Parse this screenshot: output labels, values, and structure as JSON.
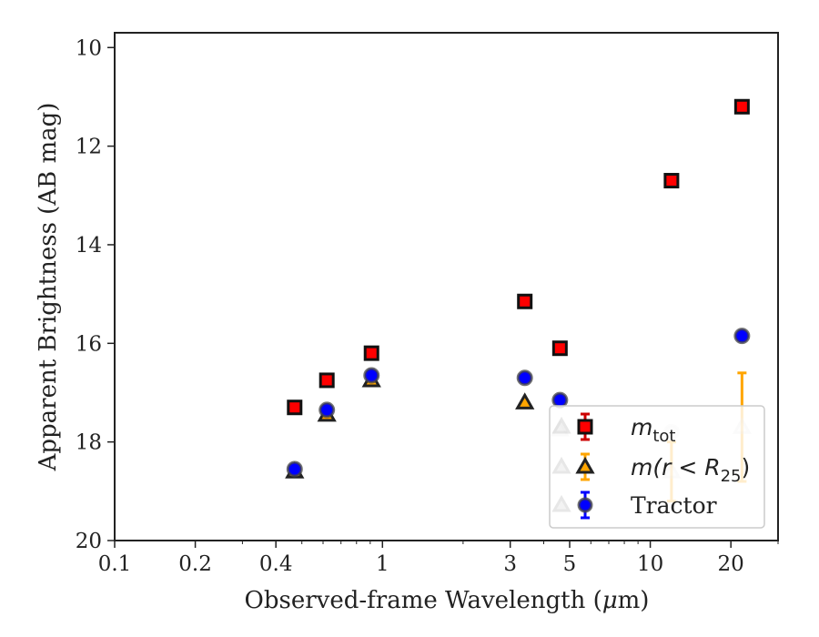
{
  "chart_data": {
    "type": "scatter",
    "xlabel_main": "Observed-frame Wavelength (",
    "xlabel_mu": "μ",
    "xlabel_tail": "m)",
    "ylabel": "Apparent Brightness (AB mag)",
    "x_scale": "log",
    "y_inverted": true,
    "xlim": [
      0.1,
      30
    ],
    "ylim": [
      9.7,
      20
    ],
    "x_ticks": [
      {
        "value": 0.1,
        "label": "0.1"
      },
      {
        "value": 0.2,
        "label": "0.2"
      },
      {
        "value": 0.4,
        "label": "0.4"
      },
      {
        "value": 1,
        "label": "1"
      },
      {
        "value": 3,
        "label": "3"
      },
      {
        "value": 5,
        "label": "5"
      },
      {
        "value": 10,
        "label": "10"
      },
      {
        "value": 20,
        "label": "20"
      }
    ],
    "y_ticks": [
      {
        "value": 10,
        "label": "10"
      },
      {
        "value": 12,
        "label": "12"
      },
      {
        "value": 14,
        "label": "14"
      },
      {
        "value": 16,
        "label": "16"
      },
      {
        "value": 18,
        "label": "18"
      },
      {
        "value": 20,
        "label": "20"
      }
    ],
    "legend_position": "lower-right",
    "series": [
      {
        "name": "m_tot",
        "legend_prefix": "m",
        "legend_sub": "tot",
        "marker": "square",
        "color": "#ff0000",
        "edge": "#111111",
        "err_color": "#cc0000",
        "points": [
          {
            "x": 0.47,
            "y": 17.3
          },
          {
            "x": 0.62,
            "y": 16.75
          },
          {
            "x": 0.91,
            "y": 16.2
          },
          {
            "x": 3.4,
            "y": 15.15
          },
          {
            "x": 4.6,
            "y": 16.1
          },
          {
            "x": 12,
            "y": 12.7
          },
          {
            "x": 22,
            "y": 11.2
          }
        ]
      },
      {
        "name": "m(r < R25)",
        "legend_prefix": "m(r < R",
        "legend_sub": "25",
        "legend_suffix": ")",
        "marker": "triangle",
        "color": "#ffa500",
        "edge": "#222222",
        "err_color": "#ffa500",
        "points": [
          {
            "x": 0.47,
            "y": 18.6
          },
          {
            "x": 0.62,
            "y": 17.45
          },
          {
            "x": 0.91,
            "y": 16.75
          },
          {
            "x": 3.4,
            "y": 17.2
          },
          {
            "x": 4.6,
            "y": 17.75,
            "faded": true
          },
          {
            "x": 12,
            "y": 18.6,
            "faded": true,
            "yerr": 0.6
          },
          {
            "x": 22,
            "y": 17.7,
            "faded": true,
            "yerr": 1.1
          }
        ]
      },
      {
        "name": "Tractor",
        "marker": "circle",
        "color": "#0000ff",
        "edge": "#444444",
        "err_color": "#0000ff",
        "points": [
          {
            "x": 0.47,
            "y": 18.55
          },
          {
            "x": 0.62,
            "y": 17.35
          },
          {
            "x": 0.91,
            "y": 16.65
          },
          {
            "x": 3.4,
            "y": 16.7
          },
          {
            "x": 4.6,
            "y": 17.15
          },
          {
            "x": 12,
            "y": 17.8,
            "faded": true
          },
          {
            "x": 22,
            "y": 15.85
          }
        ]
      }
    ]
  }
}
